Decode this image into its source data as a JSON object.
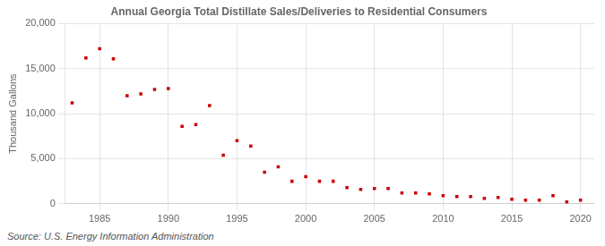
{
  "chart_data": {
    "type": "scatter",
    "title": "Annual Georgia Total Distillate Sales/Deliveries to Residential Consumers",
    "ylabel": "Thousand Gallons",
    "annotations": [
      "Source: U.S. Energy Information Administration"
    ],
    "x": [
      1983,
      1984,
      1985,
      1986,
      1987,
      1988,
      1989,
      1990,
      1991,
      1992,
      1993,
      1994,
      1995,
      1996,
      1997,
      1998,
      1999,
      2000,
      2001,
      2002,
      2003,
      2004,
      2005,
      2006,
      2007,
      2008,
      2009,
      2010,
      2011,
      2012,
      2013,
      2014,
      2015,
      2016,
      2017,
      2018,
      2019,
      2020
    ],
    "values": [
      11200,
      16200,
      17200,
      16100,
      12000,
      12200,
      12700,
      12800,
      8600,
      8800,
      10900,
      5400,
      7000,
      6400,
      3500,
      4100,
      2500,
      3000,
      2500,
      2500,
      1800,
      1600,
      1700,
      1700,
      1200,
      1200,
      1100,
      900,
      800,
      800,
      600,
      700,
      500,
      400,
      400,
      900,
      200,
      400
    ],
    "color": "#cc0000",
    "marker": "square",
    "xlim": [
      1982.5,
      2021
    ],
    "xticks": [
      1985,
      1990,
      1995,
      2000,
      2005,
      2010,
      2015,
      2020
    ],
    "ylim": [
      0,
      20000
    ],
    "yticks": [
      0,
      {
        "value": 5000,
        "label": "5,000"
      },
      {
        "value": 10000,
        "label": "10,000"
      },
      {
        "value": 15000,
        "label": "15,000"
      },
      {
        "value": 20000,
        "label": "20,000"
      }
    ],
    "grid": true
  }
}
